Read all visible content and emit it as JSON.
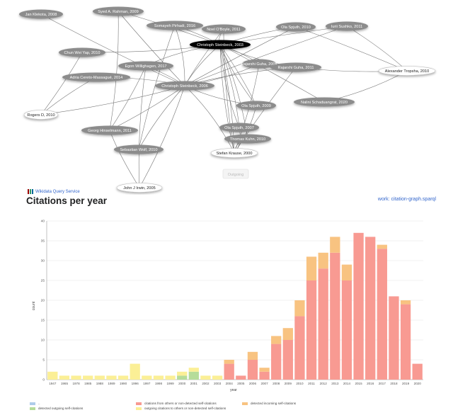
{
  "graph": {
    "nodes": [
      {
        "id": "klekota",
        "label": "Jan Klekota, 2008",
        "style": "gray"
      },
      {
        "id": "rahman",
        "label": "Syed A. Rahman, 2009",
        "style": "gray"
      },
      {
        "id": "pirhadi",
        "label": "Somayeh Pirhadi, 2016",
        "style": "gray"
      },
      {
        "id": "oboyle",
        "label": "Noel O'Boyle, 2011",
        "style": "gray"
      },
      {
        "id": "spjuth2010",
        "label": "Ola Spjuth, 2010",
        "style": "gray"
      },
      {
        "id": "sushko",
        "label": "Iurii Sushko, 2011",
        "style": "gray"
      },
      {
        "id": "steinbeck2003",
        "label": "Christoph Steinbeck, 2003",
        "style": "black"
      },
      {
        "id": "yap",
        "label": "Chun Wei Yap, 2010",
        "style": "gray"
      },
      {
        "id": "willighagen",
        "label": "Egon Willighagen, 2017",
        "style": "gray"
      },
      {
        "id": "guha_a",
        "label": "Rajarshi Guha, 2006",
        "style": "gray"
      },
      {
        "id": "guha_b",
        "label": "Rajarshi Guha, 2011",
        "style": "gray"
      },
      {
        "id": "tropsha",
        "label": "Alexander Tropsha, 2010",
        "style": "white"
      },
      {
        "id": "massaguer",
        "label": "Adria Cereto-Massagué, 2014",
        "style": "gray"
      },
      {
        "id": "steinbeck2006",
        "label": "Christoph Steinbeck, 2006",
        "style": "gray"
      },
      {
        "id": "rogers",
        "label": "Rogers D, 2010",
        "style": "white"
      },
      {
        "id": "spjuth2009",
        "label": "Ola Spjuth, 2009",
        "style": "gray"
      },
      {
        "id": "schaduangrat",
        "label": "Nalini Schaduangrat, 2020",
        "style": "gray"
      },
      {
        "id": "hinselmann",
        "label": "Georg Hinselmann, 2011",
        "style": "gray"
      },
      {
        "id": "spjuth2007",
        "label": "Ola Spjuth, 2007",
        "style": "gray"
      },
      {
        "id": "kuhn",
        "label": "Thomas Kuhn, 2010",
        "style": "gray"
      },
      {
        "id": "wolf",
        "label": "Sebastian Wolf, 2010",
        "style": "gray"
      },
      {
        "id": "krause",
        "label": "Stefan Krause, 2000",
        "style": "white"
      },
      {
        "id": "irwin",
        "label": "John J Irwin, 2005",
        "style": "white"
      }
    ],
    "outgoing_label": "Outgoing"
  },
  "wdqs": {
    "label": "Wikidata Query Service"
  },
  "section_title": "Citations per year",
  "sparql_link": "work: citation-graph.sparql",
  "colors": {
    "outgoing_self": "#aeccea",
    "detected_outgoing_self": "#b6dc9a",
    "citations_others": "#f89a92",
    "outgoing_to_others": "#fbef96",
    "incoming_self": "#f8c381"
  },
  "chart_data": {
    "type": "bar",
    "stacked": true,
    "xlabel": "year",
    "ylabel": "count",
    "ylim": [
      0,
      40
    ],
    "yticks": [
      0,
      5,
      10,
      15,
      20,
      25,
      30,
      35,
      40
    ],
    "grid": true,
    "categories": [
      "1947",
      "1965",
      "1978",
      "1985",
      "1988",
      "1989",
      "1990",
      "1996",
      "1997",
      "1998",
      "1999",
      "2000",
      "2001",
      "2002",
      "2003",
      "2004",
      "2005",
      "2006",
      "2007",
      "2008",
      "2009",
      "2010",
      "2011",
      "2012",
      "2013",
      "2014",
      "2015",
      "2016",
      "2017",
      "2018",
      "2019",
      "2020"
    ],
    "series": [
      {
        "name": "detected outgoing self-citations",
        "values": [
          0,
          0,
          0,
          0,
          0,
          0,
          0,
          0,
          0,
          0,
          0,
          1,
          2,
          0,
          0,
          0,
          0,
          0,
          0,
          0,
          0,
          0,
          0,
          0,
          0,
          0,
          0,
          0,
          0,
          0,
          0,
          0
        ]
      },
      {
        "name": "outgoing citations to others or non-detected self-citations",
        "values": [
          2,
          1,
          1,
          1,
          1,
          1,
          1,
          4,
          1,
          1,
          1,
          1,
          1,
          1,
          1,
          0,
          0,
          0,
          0,
          0,
          0,
          0,
          0,
          0,
          0,
          0,
          0,
          0,
          0,
          0,
          0,
          0
        ]
      },
      {
        "name": "citations from others or non-detected self-citations",
        "values": [
          0,
          0,
          0,
          0,
          0,
          0,
          0,
          0,
          0,
          0,
          0,
          0,
          0,
          0,
          0,
          4,
          1,
          5,
          2,
          9,
          10,
          16,
          25,
          28,
          32,
          25,
          37,
          36,
          33,
          21,
          19,
          4
        ]
      },
      {
        "name": "detected incoming self-citations",
        "values": [
          0,
          0,
          0,
          0,
          0,
          0,
          0,
          0,
          0,
          0,
          0,
          0,
          0,
          0,
          0,
          1,
          0,
          2,
          1,
          2,
          3,
          4,
          6,
          4,
          4,
          4,
          0,
          0,
          1,
          0,
          1,
          0
        ]
      }
    ],
    "legend": [
      {
        "label": "..",
        "color_key": "outgoing_self"
      },
      {
        "label": "detected outgoing self-citations",
        "color_key": "detected_outgoing_self"
      },
      {
        "label": "citations from others or non-detected self-citations",
        "color_key": "citations_others"
      },
      {
        "label": "outgoing citations to others or non-detected self-citations",
        "color_key": "outgoing_to_others"
      },
      {
        "label": "detected incoming self-citations",
        "color_key": "incoming_self"
      }
    ],
    "legend_position": "bottom"
  }
}
